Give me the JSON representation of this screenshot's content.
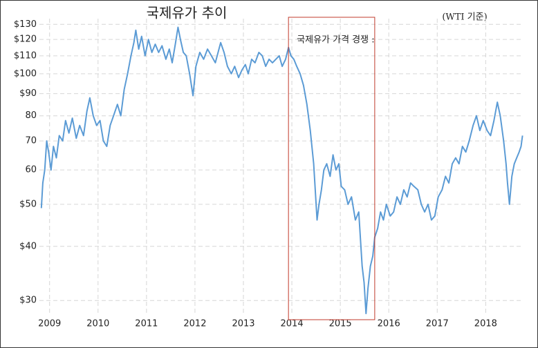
{
  "chart_data": {
    "type": "line",
    "title": "국제유가 추이",
    "subtitle": "(WTI 기준)",
    "annotation": "국제유가 가격 경쟁 :",
    "highlight_x": [
      2013.93,
      2015.71
    ],
    "highlight_color": "#c0392b",
    "log_scale": true,
    "grid": true,
    "xlim": [
      2008.79,
      2018.78
    ],
    "xticks": [
      2009,
      2010,
      2011,
      2012,
      2013,
      2014,
      2015,
      2016,
      2017,
      2018
    ],
    "ylim": [
      27.7,
      134
    ],
    "yticks": [
      {
        "value": 30,
        "label": "$30"
      },
      {
        "value": 40,
        "label": "$40"
      },
      {
        "value": 50,
        "label": "$50"
      },
      {
        "value": 60,
        "label": "60"
      },
      {
        "value": 70,
        "label": "70"
      },
      {
        "value": 80,
        "label": "80"
      },
      {
        "value": 90,
        "label": "$90"
      },
      {
        "value": 100,
        "label": "$100"
      },
      {
        "value": 110,
        "label": "$110"
      },
      {
        "value": 120,
        "label": "$120"
      },
      {
        "value": 130,
        "label": "$130"
      }
    ],
    "series": [
      {
        "color": "#5b9bd5",
        "x": [
          2008.83,
          2008.86,
          2008.9,
          2008.94,
          2008.98,
          2009.03,
          2009.08,
          2009.14,
          2009.2,
          2009.27,
          2009.33,
          2009.4,
          2009.47,
          2009.55,
          2009.62,
          2009.7,
          2009.77,
          2009.83,
          2009.9,
          2009.97,
          2010.04,
          2010.11,
          2010.18,
          2010.25,
          2010.32,
          2010.4,
          2010.47,
          2010.54,
          2010.61,
          2010.68,
          2010.74,
          2010.78,
          2010.84,
          2010.9,
          2010.97,
          2011.04,
          2011.11,
          2011.18,
          2011.25,
          2011.32,
          2011.4,
          2011.47,
          2011.53,
          2011.6,
          2011.65,
          2011.7,
          2011.76,
          2011.82,
          2011.89,
          2011.96,
          2012.02,
          2012.1,
          2012.18,
          2012.26,
          2012.34,
          2012.42,
          2012.53,
          2012.6,
          2012.67,
          2012.75,
          2012.82,
          2012.9,
          2012.97,
          2013.04,
          2013.1,
          2013.17,
          2013.24,
          2013.32,
          2013.39,
          2013.46,
          2013.53,
          2013.6,
          2013.67,
          2013.74,
          2013.8,
          2013.87,
          2013.93,
          2013.98,
          2014.04,
          2014.1,
          2014.17,
          2014.24,
          2014.31,
          2014.38,
          2014.45,
          2014.52,
          2014.56,
          2014.61,
          2014.66,
          2014.72,
          2014.79,
          2014.85,
          2014.91,
          2014.97,
          2015.02,
          2015.09,
          2015.16,
          2015.23,
          2015.31,
          2015.38,
          2015.45,
          2015.49,
          2015.53,
          2015.57,
          2015.62,
          2015.67,
          2015.71,
          2015.77,
          2015.83,
          2015.89,
          2015.95,
          2016.03,
          2016.1,
          2016.17,
          2016.24,
          2016.31,
          2016.38,
          2016.45,
          2016.52,
          2016.6,
          2016.67,
          2016.74,
          2016.81,
          2016.88,
          2016.95,
          2017.02,
          2017.1,
          2017.17,
          2017.24,
          2017.31,
          2017.38,
          2017.45,
          2017.52,
          2017.59,
          2017.66,
          2017.74,
          2017.81,
          2017.88,
          2017.95,
          2018.03,
          2018.1,
          2018.17,
          2018.24,
          2018.3,
          2018.37,
          2018.42,
          2018.45,
          2018.49,
          2018.54,
          2018.59,
          2018.64,
          2018.69,
          2018.73,
          2018.76
        ],
        "values": [
          49,
          56,
          60,
          70,
          66,
          60,
          68,
          64,
          72,
          70,
          78,
          73,
          79,
          71,
          76,
          72,
          82,
          88,
          80,
          76,
          78,
          70,
          68,
          76,
          80,
          85,
          80,
          92,
          100,
          110,
          118,
          126,
          114,
          122,
          110,
          120,
          112,
          117,
          112,
          116,
          108,
          114,
          106,
          118,
          128,
          120,
          112,
          110,
          100,
          89,
          104,
          112,
          108,
          114,
          110,
          106,
          118,
          112,
          104,
          100,
          104,
          98,
          102,
          105,
          100,
          108,
          106,
          112,
          110,
          104,
          108,
          106,
          108,
          110,
          104,
          108,
          115,
          110,
          108,
          104,
          100,
          94,
          85,
          74,
          62,
          46,
          50,
          54,
          60,
          62,
          58,
          65,
          60,
          62,
          55,
          54,
          50,
          52,
          46,
          48,
          36,
          33,
          28,
          32,
          36,
          38,
          42,
          44,
          48,
          46,
          50,
          47,
          48,
          52,
          50,
          54,
          52,
          56,
          55,
          54,
          50,
          48,
          50,
          46,
          47,
          52,
          54,
          58,
          56,
          62,
          64,
          62,
          68,
          66,
          70,
          76,
          80,
          74,
          78,
          74,
          72,
          78,
          86,
          80,
          70,
          62,
          56,
          50,
          58,
          62,
          64,
          66,
          68,
          72
        ]
      }
    ]
  }
}
